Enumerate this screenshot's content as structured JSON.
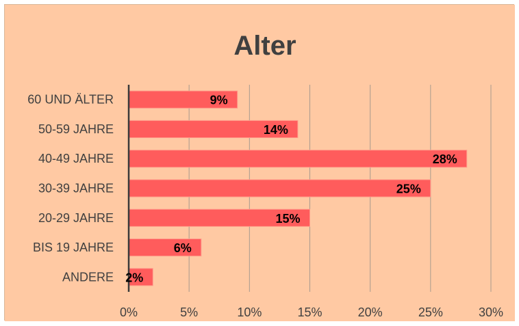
{
  "chart_data": {
    "type": "bar",
    "orientation": "horizontal",
    "title": "Alter",
    "categories": [
      "60 UND ÄLTER",
      "50-59 JAHRE",
      "40-49 JAHRE",
      "30-39 JAHRE",
      "20-29 JAHRE",
      "BIS 19 JAHRE",
      "ANDERE"
    ],
    "values": [
      9,
      14,
      28,
      25,
      15,
      6,
      2
    ],
    "data_labels": [
      "9%",
      "14%",
      "28%",
      "25%",
      "15%",
      "6%",
      "2%"
    ],
    "xlim": [
      0,
      30
    ],
    "x_ticks": [
      0,
      5,
      10,
      15,
      20,
      25,
      30
    ],
    "x_tick_labels": [
      "0%",
      "5%",
      "10%",
      "15%",
      "20%",
      "25%",
      "30%"
    ],
    "xlabel": "",
    "ylabel": "",
    "grid": "vertical",
    "legend": "none",
    "colors": {
      "background": "#ffc9a3",
      "bar_fill": "#ff5c5c",
      "bar_stroke": "#ff9a8a",
      "gridline": "#a89a8e",
      "axis": "#3a3a3a"
    }
  }
}
